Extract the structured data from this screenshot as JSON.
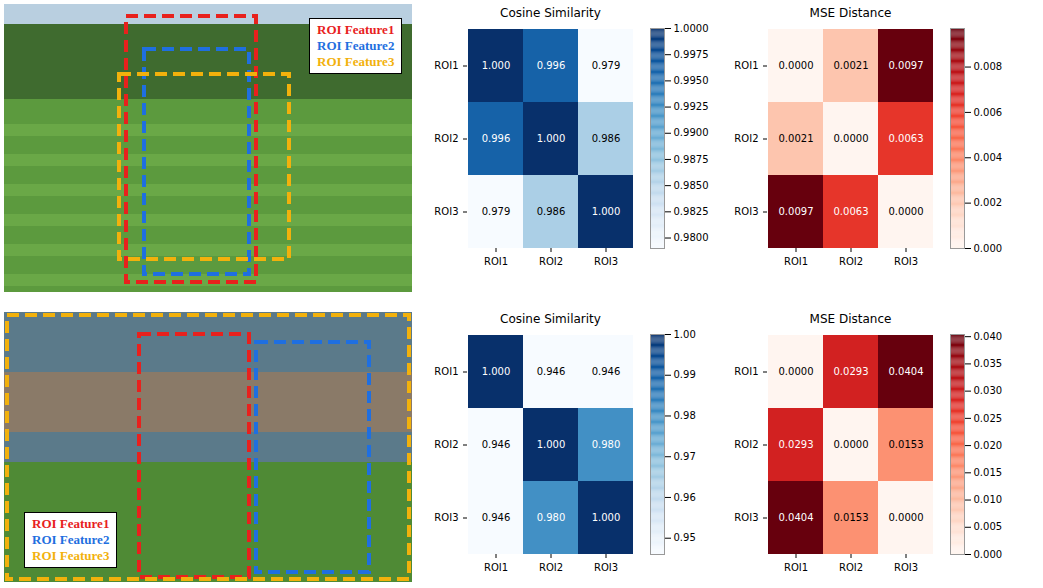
{
  "chart_data": [
    {
      "type": "heatmap",
      "title": "Cosine Similarity",
      "x": [
        "ROI1",
        "ROI2",
        "ROI3"
      ],
      "y": [
        "ROI1",
        "ROI2",
        "ROI3"
      ],
      "values": [
        [
          1.0,
          0.996,
          0.979
        ],
        [
          0.996,
          1.0,
          0.986
        ],
        [
          0.979,
          0.986,
          1.0
        ]
      ],
      "value_labels": [
        [
          "1.000",
          "0.996",
          "0.979"
        ],
        [
          "0.996",
          "1.000",
          "0.986"
        ],
        [
          "0.979",
          "0.986",
          "1.000"
        ]
      ],
      "data_labels": true,
      "color": "Blues",
      "colorbar": {
        "range": [
          0.979,
          1.0
        ],
        "ticks": [
          {
            "value": 0.98,
            "label": "0.9800"
          },
          {
            "value": 0.9825,
            "label": "0.9825"
          },
          {
            "value": 0.985,
            "label": "0.9850"
          },
          {
            "value": 0.9875,
            "label": "0.9875"
          },
          {
            "value": 0.99,
            "label": "0.9900"
          },
          {
            "value": 0.9925,
            "label": "0.9925"
          },
          {
            "value": 0.995,
            "label": "0.9950"
          },
          {
            "value": 0.9975,
            "label": "0.9975"
          },
          {
            "value": 1.0,
            "label": "1.0000"
          }
        ]
      }
    },
    {
      "type": "heatmap",
      "title": "MSE Distance",
      "x": [
        "ROI1",
        "ROI2",
        "ROI3"
      ],
      "y": [
        "ROI1",
        "ROI2",
        "ROI3"
      ],
      "values": [
        [
          0.0,
          0.0021,
          0.0097
        ],
        [
          0.0021,
          0.0,
          0.0063
        ],
        [
          0.0097,
          0.0063,
          0.0
        ]
      ],
      "value_labels": [
        [
          "0.0000",
          "0.0021",
          "0.0097"
        ],
        [
          "0.0021",
          "0.0000",
          "0.0063"
        ],
        [
          "0.0097",
          "0.0063",
          "0.0000"
        ]
      ],
      "data_labels": true,
      "color": "Reds",
      "colorbar": {
        "range": [
          0.0,
          0.0097
        ],
        "ticks": [
          {
            "value": 0.0,
            "label": "0.000"
          },
          {
            "value": 0.002,
            "label": "0.002"
          },
          {
            "value": 0.004,
            "label": "0.004"
          },
          {
            "value": 0.006,
            "label": "0.006"
          },
          {
            "value": 0.008,
            "label": "0.008"
          }
        ]
      }
    },
    {
      "type": "heatmap",
      "title": "Cosine Similarity",
      "x": [
        "ROI1",
        "ROI2",
        "ROI3"
      ],
      "y": [
        "ROI1",
        "ROI2",
        "ROI3"
      ],
      "values": [
        [
          1.0,
          0.946,
          0.946
        ],
        [
          0.946,
          1.0,
          0.98
        ],
        [
          0.946,
          0.98,
          1.0
        ]
      ],
      "value_labels": [
        [
          "1.000",
          "0.946",
          "0.946"
        ],
        [
          "0.946",
          "1.000",
          "0.980"
        ],
        [
          "0.946",
          "0.980",
          "1.000"
        ]
      ],
      "data_labels": true,
      "color": "Blues",
      "colorbar": {
        "range": [
          0.946,
          1.0
        ],
        "ticks": [
          {
            "value": 0.95,
            "label": "0.95"
          },
          {
            "value": 0.96,
            "label": "0.96"
          },
          {
            "value": 0.97,
            "label": "0.97"
          },
          {
            "value": 0.98,
            "label": "0.98"
          },
          {
            "value": 0.99,
            "label": "0.99"
          },
          {
            "value": 1.0,
            "label": "1.00"
          }
        ]
      }
    },
    {
      "type": "heatmap",
      "title": "MSE Distance",
      "x": [
        "ROI1",
        "ROI2",
        "ROI3"
      ],
      "y": [
        "ROI1",
        "ROI2",
        "ROI3"
      ],
      "values": [
        [
          0.0,
          0.0293,
          0.0404
        ],
        [
          0.0293,
          0.0,
          0.0153
        ],
        [
          0.0404,
          0.0153,
          0.0
        ]
      ],
      "value_labels": [
        [
          "0.0000",
          "0.0293",
          "0.0404"
        ],
        [
          "0.0293",
          "0.0000",
          "0.0153"
        ],
        [
          "0.0404",
          "0.0153",
          "0.0000"
        ]
      ],
      "data_labels": true,
      "color": "Reds",
      "colorbar": {
        "range": [
          0.0,
          0.0404
        ],
        "ticks": [
          {
            "value": 0.0,
            "label": "0.000"
          },
          {
            "value": 0.005,
            "label": "0.005"
          },
          {
            "value": 0.01,
            "label": "0.010"
          },
          {
            "value": 0.015,
            "label": "0.015"
          },
          {
            "value": 0.02,
            "label": "0.020"
          },
          {
            "value": 0.025,
            "label": "0.025"
          },
          {
            "value": 0.03,
            "label": "0.030"
          },
          {
            "value": 0.035,
            "label": "0.035"
          },
          {
            "value": 0.04,
            "label": "0.040"
          }
        ]
      }
    }
  ],
  "images": [
    {
      "legend": [
        {
          "label": "ROI Feature1",
          "color": "#e8211d"
        },
        {
          "label": "ROI Feature2",
          "color": "#1f6fe0"
        },
        {
          "label": "ROI Feature3",
          "color": "#f2b10c"
        }
      ]
    },
    {
      "legend": [
        {
          "label": "ROI Feature1",
          "color": "#e8211d"
        },
        {
          "label": "ROI Feature2",
          "color": "#1f6fe0"
        },
        {
          "label": "ROI Feature3",
          "color": "#f2b10c"
        }
      ]
    }
  ]
}
